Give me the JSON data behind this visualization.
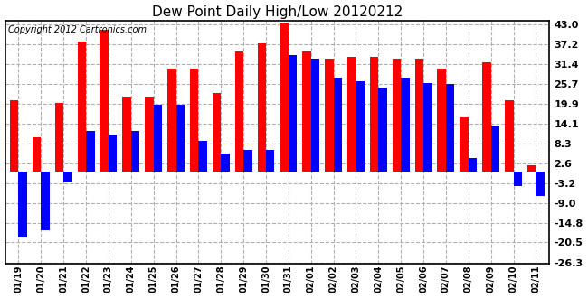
{
  "title": "Dew Point Daily High/Low 20120212",
  "copyright": "Copyright 2012 Cartronics.com",
  "dates": [
    "01/19",
    "01/20",
    "01/21",
    "01/22",
    "01/23",
    "01/24",
    "01/25",
    "01/26",
    "01/27",
    "01/28",
    "01/29",
    "01/30",
    "01/31",
    "02/01",
    "02/02",
    "02/03",
    "02/04",
    "02/05",
    "02/06",
    "02/07",
    "02/08",
    "02/09",
    "02/10",
    "02/11"
  ],
  "highs": [
    21.0,
    10.0,
    20.0,
    38.0,
    41.5,
    22.0,
    22.0,
    30.0,
    30.0,
    23.0,
    35.0,
    37.5,
    43.5,
    35.0,
    33.0,
    33.5,
    33.5,
    33.0,
    33.0,
    30.0,
    16.0,
    32.0,
    21.0,
    2.0
  ],
  "lows": [
    -19.0,
    -17.0,
    -3.0,
    12.0,
    11.0,
    12.0,
    19.5,
    19.5,
    9.0,
    5.5,
    6.5,
    6.5,
    34.0,
    33.0,
    27.5,
    26.5,
    24.5,
    27.5,
    26.0,
    25.5,
    4.0,
    13.5,
    -4.0,
    -7.0
  ],
  "yticks": [
    43.0,
    37.2,
    31.4,
    25.7,
    19.9,
    14.1,
    8.3,
    2.6,
    -3.2,
    -9.0,
    -14.8,
    -20.5,
    -26.3
  ],
  "bar_width": 0.38,
  "high_color": "#ff0000",
  "low_color": "#0000ff",
  "bg_color": "#ffffff",
  "grid_color": "#b0b0b0",
  "title_fontsize": 11,
  "copyright_fontsize": 7,
  "tick_fontsize": 8,
  "xtick_fontsize": 7
}
